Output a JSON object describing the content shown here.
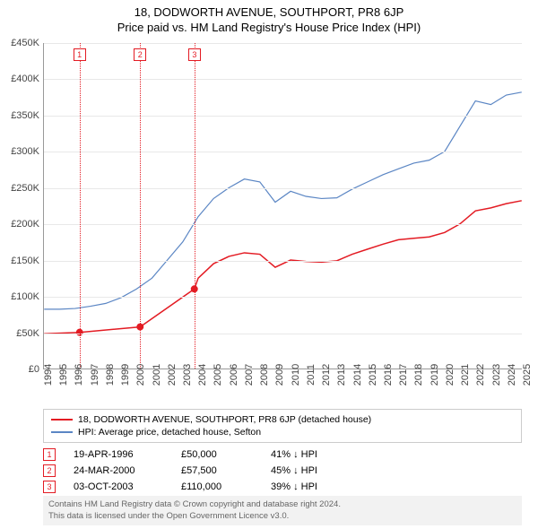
{
  "title": "18, DODWORTH AVENUE, SOUTHPORT, PR8 6JP",
  "subtitle": "Price paid vs. HM Land Registry's House Price Index (HPI)",
  "chart": {
    "type": "line",
    "background_color": "#ffffff",
    "grid_color": "#e8e8e8",
    "axis_color": "#999999",
    "ylim": [
      0,
      450000
    ],
    "ytick_step": 50000,
    "ytick_labels": [
      "£0",
      "£50K",
      "£100K",
      "£150K",
      "£200K",
      "£250K",
      "£300K",
      "£350K",
      "£400K",
      "£450K"
    ],
    "xlim": [
      1994,
      2025
    ],
    "xticks": [
      1994,
      1995,
      1996,
      1997,
      1998,
      1999,
      2000,
      2001,
      2002,
      2003,
      2004,
      2005,
      2006,
      2007,
      2008,
      2009,
      2010,
      2011,
      2012,
      2013,
      2014,
      2015,
      2016,
      2017,
      2018,
      2019,
      2020,
      2021,
      2022,
      2023,
      2024,
      2025
    ],
    "series": [
      {
        "name": "price_paid",
        "label": "18, DODWORTH AVENUE, SOUTHPORT, PR8 6JP (detached house)",
        "color": "#e31b23",
        "line_width": 1.5,
        "x": [
          1994,
          1996.3,
          2000.23,
          2003.75,
          2004,
          2005,
          2006,
          2007,
          2008,
          2009,
          2010,
          2011,
          2012,
          2013,
          2014,
          2015,
          2016,
          2017,
          2018,
          2019,
          2020,
          2021,
          2022,
          2023,
          2024,
          2025
        ],
        "y": [
          48000,
          50000,
          57500,
          110000,
          125000,
          145000,
          155000,
          160000,
          158000,
          140000,
          150000,
          148000,
          147000,
          149000,
          158000,
          165000,
          172000,
          178000,
          180000,
          182000,
          188000,
          200000,
          218000,
          222000,
          228000,
          232000
        ]
      },
      {
        "name": "hpi",
        "label": "HPI: Average price, detached house, Sefton",
        "color": "#5b86c4",
        "line_width": 1.2,
        "x": [
          1994,
          1995,
          1996,
          1997,
          1998,
          1999,
          2000,
          2001,
          2002,
          2003,
          2004,
          2005,
          2006,
          2007,
          2008,
          2009,
          2010,
          2011,
          2012,
          2013,
          2014,
          2015,
          2016,
          2017,
          2018,
          2019,
          2020,
          2021,
          2022,
          2023,
          2024,
          2025
        ],
        "y": [
          82000,
          82000,
          83000,
          86000,
          90000,
          98000,
          110000,
          125000,
          150000,
          175000,
          210000,
          235000,
          250000,
          262000,
          258000,
          230000,
          245000,
          238000,
          235000,
          236000,
          248000,
          258000,
          268000,
          276000,
          284000,
          288000,
          300000,
          335000,
          370000,
          365000,
          378000,
          382000
        ]
      }
    ],
    "markers": [
      {
        "x": 1996.3,
        "y": 50000,
        "color": "#e31b23",
        "r": 4
      },
      {
        "x": 2000.23,
        "y": 57500,
        "color": "#e31b23",
        "r": 4
      },
      {
        "x": 2003.75,
        "y": 110000,
        "color": "#e31b23",
        "r": 4
      }
    ],
    "vlines": [
      {
        "x": 1996.3,
        "label": "1"
      },
      {
        "x": 2000.23,
        "label": "2"
      },
      {
        "x": 2003.75,
        "label": "3"
      }
    ]
  },
  "legend": {
    "items": [
      {
        "color": "#e31b23",
        "label": "18, DODWORTH AVENUE, SOUTHPORT, PR8 6JP (detached house)"
      },
      {
        "color": "#5b86c4",
        "label": "HPI: Average price, detached house, Sefton"
      }
    ]
  },
  "transactions": [
    {
      "n": "1",
      "date": "19-APR-1996",
      "price": "£50,000",
      "delta": "41% ↓ HPI"
    },
    {
      "n": "2",
      "date": "24-MAR-2000",
      "price": "£57,500",
      "delta": "45% ↓ HPI"
    },
    {
      "n": "3",
      "date": "03-OCT-2003",
      "price": "£110,000",
      "delta": "39% ↓ HPI"
    }
  ],
  "footer_line1": "Contains HM Land Registry data © Crown copyright and database right 2024.",
  "footer_line2": "This data is licensed under the Open Government Licence v3.0."
}
